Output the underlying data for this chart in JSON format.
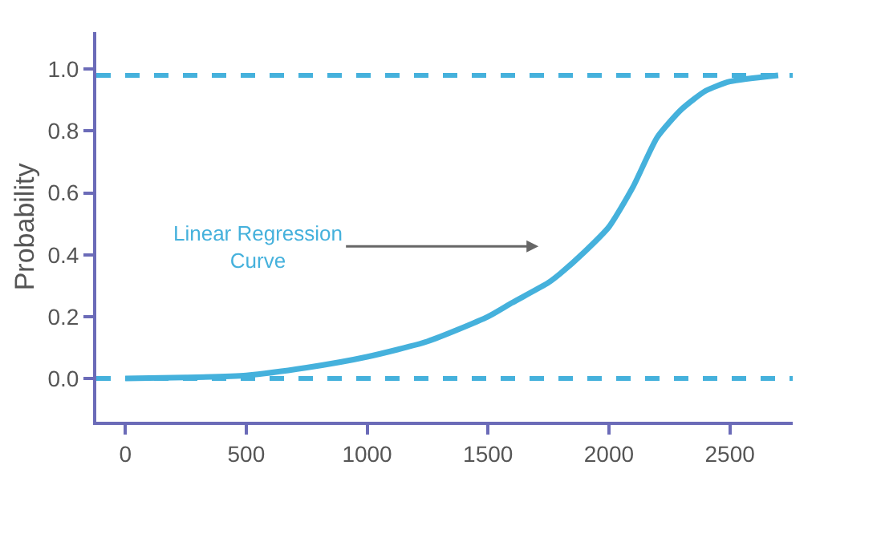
{
  "chart_data": {
    "type": "line",
    "ylabel": "Probability",
    "x": [
      0,
      250,
      500,
      750,
      1000,
      1250,
      1500,
      1600,
      1750,
      1800,
      1900,
      2000,
      2100,
      2200,
      2300,
      2400,
      2500,
      2700
    ],
    "series": [
      {
        "color": "#45b1dc",
        "values": [
          0.0,
          0.003,
          0.01,
          0.035,
          0.07,
          0.12,
          0.2,
          0.245,
          0.31,
          0.34,
          0.41,
          0.49,
          0.62,
          0.78,
          0.87,
          0.93,
          0.96,
          0.98
        ]
      }
    ],
    "xlim": [
      -120,
      2760
    ],
    "xticks": [
      0,
      500,
      1000,
      1500,
      2000,
      2500
    ],
    "ylim": [
      -0.14,
      1.12
    ],
    "yticks": [
      {
        "value": 0,
        "label": "0.0"
      },
      {
        "value": 0.2,
        "label": "0.2"
      },
      {
        "value": 0.4,
        "label": "0.4"
      },
      {
        "value": 0.6,
        "label": "0.6"
      },
      {
        "value": 0.8,
        "label": "0.8"
      },
      {
        "value": 1,
        "label": "1.0"
      }
    ],
    "ref_lines": [
      {
        "axis": "y",
        "value": 0.98,
        "color": "#45b1dc",
        "line_style": "dashed"
      },
      {
        "axis": "y",
        "value": 0.0,
        "color": "#45b1dc",
        "line_style": "dashed"
      }
    ],
    "annotations": [
      "Linear Regression\nCurve"
    ],
    "grid": false,
    "legend": false,
    "marker": "none",
    "line_style": "solid"
  }
}
